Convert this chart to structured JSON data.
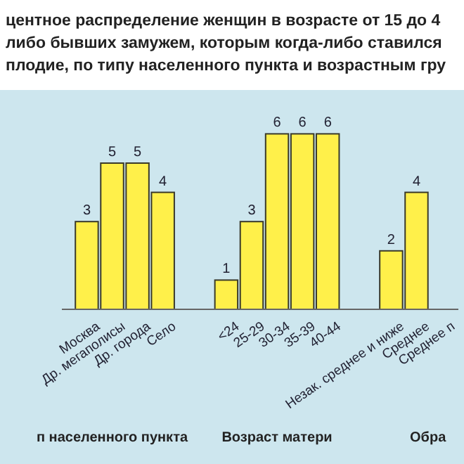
{
  "chart_data": {
    "type": "bar",
    "title": "центное распределение женщин в возрасте от 15 до 4\nлибо бывших замужем, которым когда-либо ставился\nплодие, по типу населенного пункта и возрастным гру",
    "categories": [
      "Москва",
      "Др. мегаполисы",
      "Др. города",
      "Село",
      "<24",
      "25-29",
      "30-34",
      "35-39",
      "40-44",
      "Незак. среднее и ниже",
      "Среднее",
      "Среднее п"
    ],
    "values": [
      3,
      5,
      5,
      4,
      1,
      3,
      6,
      6,
      6,
      2,
      4,
      null
    ],
    "color": "#fff04a",
    "data_labels": true,
    "annotations": [
      "п населенного пункта",
      "Возраст матери",
      "Обра"
    ]
  }
}
